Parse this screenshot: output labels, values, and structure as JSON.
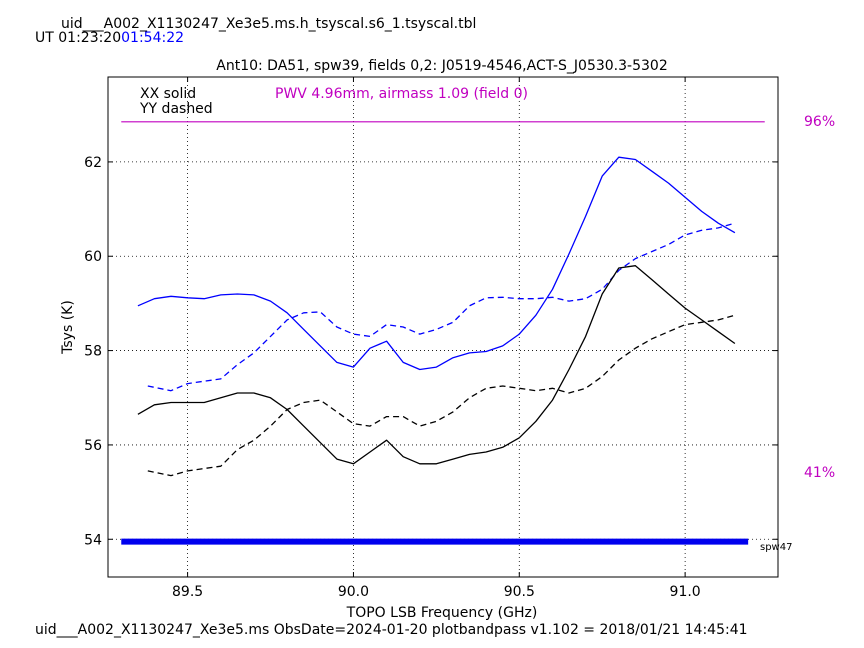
{
  "header": {
    "filename": "uid___A002_X1130247_Xe3e5.ms.h_tsyscal.s6_1.tsyscal.tbl",
    "ut_prefix": "UT 01:23:20",
    "ut_end": "01:54:22",
    "colors": {
      "ut_end": "#0000ff"
    }
  },
  "footer": {
    "text": "uid___A002_X1130247_Xe3e5.ms  ObsDate=2024-01-20   plotbandpass v1.102 = 2018/01/21 14:45:41"
  },
  "chart_data": {
    "type": "line",
    "title": "Ant10: DA51,  spw39,  fields 0,2: J0519-4546,ACT-S_J0530.3-5302",
    "xlabel": "TOPO LSB Frequency (GHz)",
    "ylabel": "Tsys (K)",
    "xlim": [
      89.26,
      91.28
    ],
    "ylim": [
      53.2,
      63.8
    ],
    "xticks": [
      89.5,
      90.0,
      90.5,
      91.0
    ],
    "xtick_labels": [
      "89.5",
      "90.0",
      "90.5",
      "91.0"
    ],
    "yticks": [
      54,
      56,
      58,
      60,
      62
    ],
    "ytick_labels": [
      "54",
      "56",
      "58",
      "60",
      "62"
    ],
    "grid": true,
    "legend": {
      "placement": "top-left",
      "entries": [
        "XX solid",
        "YY dashed"
      ]
    },
    "annotation": {
      "text": "PWV 4.96mm, airmass 1.09 (field 0)",
      "color": "#c000c0"
    },
    "transmission": {
      "color": "#c000c0",
      "top_label": "96%",
      "bottom_label": "41%",
      "x": [
        89.3,
        91.24
      ],
      "y": [
        62.85,
        62.85
      ]
    },
    "spw_bar": {
      "label": "spw47",
      "color": "#0000ee",
      "x": [
        89.3,
        91.19
      ],
      "y": 53.95
    },
    "series": [
      {
        "color": "#0000ff",
        "dash": false,
        "x": [
          89.35,
          89.4,
          89.45,
          89.5,
          89.55,
          89.6,
          89.65,
          89.7,
          89.75,
          89.8,
          89.85,
          89.9,
          89.95,
          90.0,
          90.05,
          90.1,
          90.15,
          90.2,
          90.25,
          90.3,
          90.35,
          90.4,
          90.45,
          90.5,
          90.55,
          90.6,
          90.65,
          90.7,
          90.75,
          90.8,
          90.85,
          90.9,
          90.95,
          91.0,
          91.05,
          91.1,
          91.15
        ],
        "y": [
          58.95,
          59.1,
          59.15,
          59.12,
          59.1,
          59.18,
          59.2,
          59.18,
          59.05,
          58.8,
          58.45,
          58.1,
          57.75,
          57.65,
          58.05,
          58.2,
          57.75,
          57.6,
          57.65,
          57.85,
          57.95,
          57.98,
          58.1,
          58.35,
          58.75,
          59.3,
          60.05,
          60.85,
          61.7,
          62.1,
          62.05,
          61.8,
          61.55,
          61.25,
          60.95,
          60.7,
          60.5
        ]
      },
      {
        "color": "#0000ff",
        "dash": true,
        "x": [
          89.38,
          89.45,
          89.5,
          89.55,
          89.6,
          89.65,
          89.7,
          89.75,
          89.8,
          89.85,
          89.9,
          89.95,
          90.0,
          90.05,
          90.1,
          90.15,
          90.2,
          90.25,
          90.3,
          90.35,
          90.4,
          90.45,
          90.5,
          90.55,
          90.6,
          90.65,
          90.7,
          90.75,
          90.8,
          90.85,
          90.9,
          90.95,
          91.0,
          91.05,
          91.1,
          91.15
        ],
        "y": [
          57.25,
          57.15,
          57.3,
          57.35,
          57.4,
          57.7,
          57.95,
          58.3,
          58.65,
          58.8,
          58.82,
          58.5,
          58.35,
          58.3,
          58.55,
          58.5,
          58.35,
          58.45,
          58.6,
          58.95,
          59.12,
          59.13,
          59.1,
          59.1,
          59.13,
          59.05,
          59.1,
          59.3,
          59.7,
          59.95,
          60.1,
          60.25,
          60.45,
          60.55,
          60.6,
          60.7
        ]
      },
      {
        "color": "#000000",
        "dash": false,
        "x": [
          89.35,
          89.4,
          89.45,
          89.5,
          89.55,
          89.6,
          89.65,
          89.7,
          89.75,
          89.8,
          89.85,
          89.9,
          89.95,
          90.0,
          90.05,
          90.1,
          90.15,
          90.2,
          90.25,
          90.3,
          90.35,
          90.4,
          90.45,
          90.5,
          90.55,
          90.6,
          90.65,
          90.7,
          90.75,
          90.8,
          90.85,
          90.9,
          90.95,
          91.0,
          91.05,
          91.1,
          91.15
        ],
        "y": [
          56.65,
          56.85,
          56.9,
          56.9,
          56.9,
          57.0,
          57.1,
          57.1,
          57.0,
          56.75,
          56.4,
          56.05,
          55.7,
          55.6,
          55.85,
          56.1,
          55.75,
          55.6,
          55.6,
          55.7,
          55.8,
          55.85,
          55.95,
          56.15,
          56.5,
          56.95,
          57.6,
          58.3,
          59.2,
          59.75,
          59.8,
          59.5,
          59.2,
          58.9,
          58.65,
          58.4,
          58.15
        ]
      },
      {
        "color": "#000000",
        "dash": true,
        "x": [
          89.38,
          89.45,
          89.5,
          89.55,
          89.6,
          89.65,
          89.7,
          89.75,
          89.8,
          89.85,
          89.9,
          89.95,
          90.0,
          90.05,
          90.1,
          90.15,
          90.2,
          90.25,
          90.3,
          90.35,
          90.4,
          90.45,
          90.5,
          90.55,
          90.6,
          90.65,
          90.7,
          90.75,
          90.8,
          90.85,
          90.9,
          90.95,
          91.0,
          91.05,
          91.1,
          91.15
        ],
        "y": [
          55.45,
          55.35,
          55.45,
          55.5,
          55.55,
          55.9,
          56.1,
          56.4,
          56.75,
          56.9,
          56.95,
          56.7,
          56.45,
          56.4,
          56.6,
          56.6,
          56.4,
          56.5,
          56.7,
          57.0,
          57.2,
          57.25,
          57.2,
          57.15,
          57.2,
          57.1,
          57.2,
          57.45,
          57.8,
          58.05,
          58.25,
          58.4,
          58.55,
          58.6,
          58.65,
          58.75
        ]
      }
    ]
  }
}
